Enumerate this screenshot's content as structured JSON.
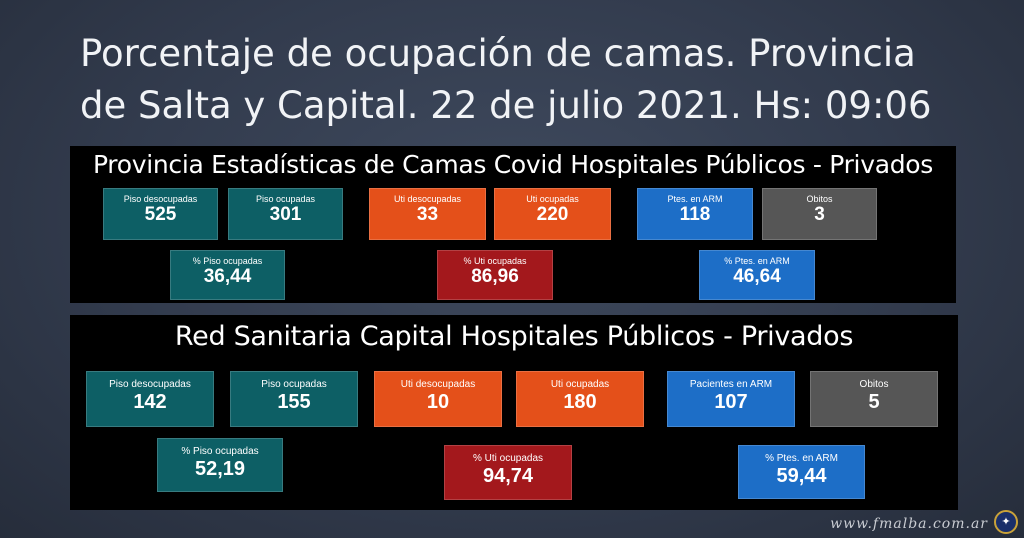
{
  "title": "Porcentaje de ocupación de camas. Provincia de Salta y Capital. 22 de julio 2021. Hs: 09:06",
  "provincia": {
    "heading": "Provincia Estadísticas de Camas Covid Hospitales Públicos - Privados",
    "piso_desocupadas": {
      "label": "Piso desocupadas",
      "value": "525"
    },
    "piso_ocupadas": {
      "label": "Piso ocupadas",
      "value": "301"
    },
    "uti_desocupadas": {
      "label": "Uti desocupadas",
      "value": "33"
    },
    "uti_ocupadas": {
      "label": "Uti ocupadas",
      "value": "220"
    },
    "ptes_arm": {
      "label": "Ptes. en ARM",
      "value": "118"
    },
    "obitos": {
      "label": "Obitos",
      "value": "3"
    },
    "pct_piso": {
      "label": "% Piso ocupadas",
      "value": "36,44"
    },
    "pct_uti": {
      "label": "% Uti ocupadas",
      "value": "86,96"
    },
    "pct_arm": {
      "label": "% Ptes. en ARM",
      "value": "46,64"
    }
  },
  "capital": {
    "heading": "Red Sanitaria Capital Hospitales Públicos - Privados",
    "piso_desocupadas": {
      "label": "Piso desocupadas",
      "value": "142"
    },
    "piso_ocupadas": {
      "label": "Piso ocupadas",
      "value": "155"
    },
    "uti_desocupadas": {
      "label": "Uti desocupadas",
      "value": "10"
    },
    "uti_ocupadas": {
      "label": "Uti ocupadas",
      "value": "180"
    },
    "pacientes_arm": {
      "label": "Pacientes en ARM",
      "value": "107"
    },
    "obitos": {
      "label": "Obitos",
      "value": "5"
    },
    "pct_piso": {
      "label": "% Piso ocupadas",
      "value": "52,19"
    },
    "pct_uti": {
      "label": "% Uti ocupadas",
      "value": "94,74"
    },
    "pct_arm": {
      "label": "% Ptes. en ARM",
      "value": "59,44"
    }
  },
  "watermark": "www.fmalba.com.ar",
  "colors": {
    "teal": "#0d5f65",
    "orange": "#e4501a",
    "blue": "#1d6ec7",
    "gray": "#565656",
    "red": "#a3181c"
  }
}
